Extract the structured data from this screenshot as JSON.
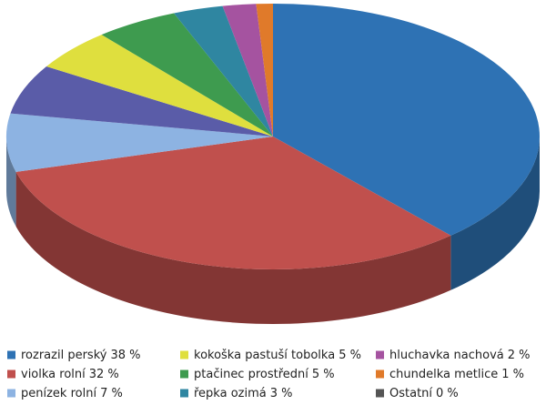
{
  "chart_data": {
    "type": "pie3d",
    "categories": [
      "rozrazil perský",
      "violka rolní",
      "penízek rolní",
      null,
      "kokoška pastuší tobolka",
      "ptačinec prostřední",
      "řepka ozimá",
      "hluchavka nachová",
      "chundelka metlice",
      "Ostatní"
    ],
    "values": [
      38,
      32,
      7,
      6,
      5,
      5,
      3,
      2,
      1,
      0
    ],
    "value_labels": [
      "38 %",
      "32 %",
      "7 %",
      null,
      "5 %",
      "5 %",
      "3 %",
      "2 %",
      "1 %",
      "0 %"
    ],
    "colors": [
      "#2e72b4",
      "#c0504d",
      "#8db3e2",
      "#5a5ca8",
      "#dfdf3e",
      "#3e9b4f",
      "#2f86a1",
      "#a553a0",
      "#e07a2a",
      "#555555"
    ],
    "legend": "bottom"
  }
}
